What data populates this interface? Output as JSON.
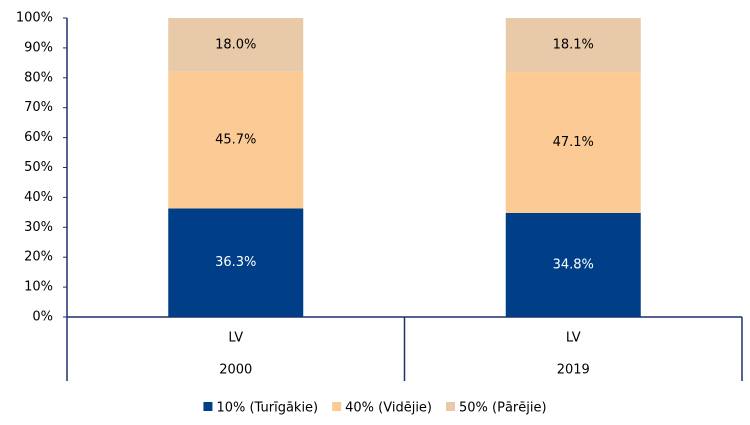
{
  "chart_data": {
    "type": "stacked_bar",
    "categories": [
      "LV",
      "LV"
    ],
    "groups": [
      "2000",
      "2019"
    ],
    "series": [
      {
        "name": "10% (Turīgākie)",
        "color": "#003f87",
        "label_color": "#ffffff",
        "values": [
          36.3,
          34.8
        ],
        "value_labels": [
          "36.3%",
          "34.8%"
        ]
      },
      {
        "name": "40% (Vidējie)",
        "color": "#fccb95",
        "label_color": "#000000",
        "values": [
          45.7,
          47.1
        ],
        "value_labels": [
          "45.7%",
          "47.1%"
        ]
      },
      {
        "name": "50% (Pārējie)",
        "color": "#e8c9a8",
        "label_color": "#000000",
        "values": [
          18.0,
          18.1
        ],
        "value_labels": [
          "18.0%",
          "18.1%"
        ]
      }
    ],
    "ylim": [
      0,
      100
    ],
    "yticks": [
      {
        "value": 0,
        "label": "0%"
      },
      {
        "value": 10,
        "label": "10%"
      },
      {
        "value": 20,
        "label": "20%"
      },
      {
        "value": 30,
        "label": "30%"
      },
      {
        "value": 40,
        "label": "40%"
      },
      {
        "value": 50,
        "label": "50%"
      },
      {
        "value": 60,
        "label": "60%"
      },
      {
        "value": 70,
        "label": "70%"
      },
      {
        "value": 80,
        "label": "80%"
      },
      {
        "value": 90,
        "label": "90%"
      },
      {
        "value": 100,
        "label": "100%"
      }
    ],
    "grid": false,
    "legend": "bottom"
  }
}
